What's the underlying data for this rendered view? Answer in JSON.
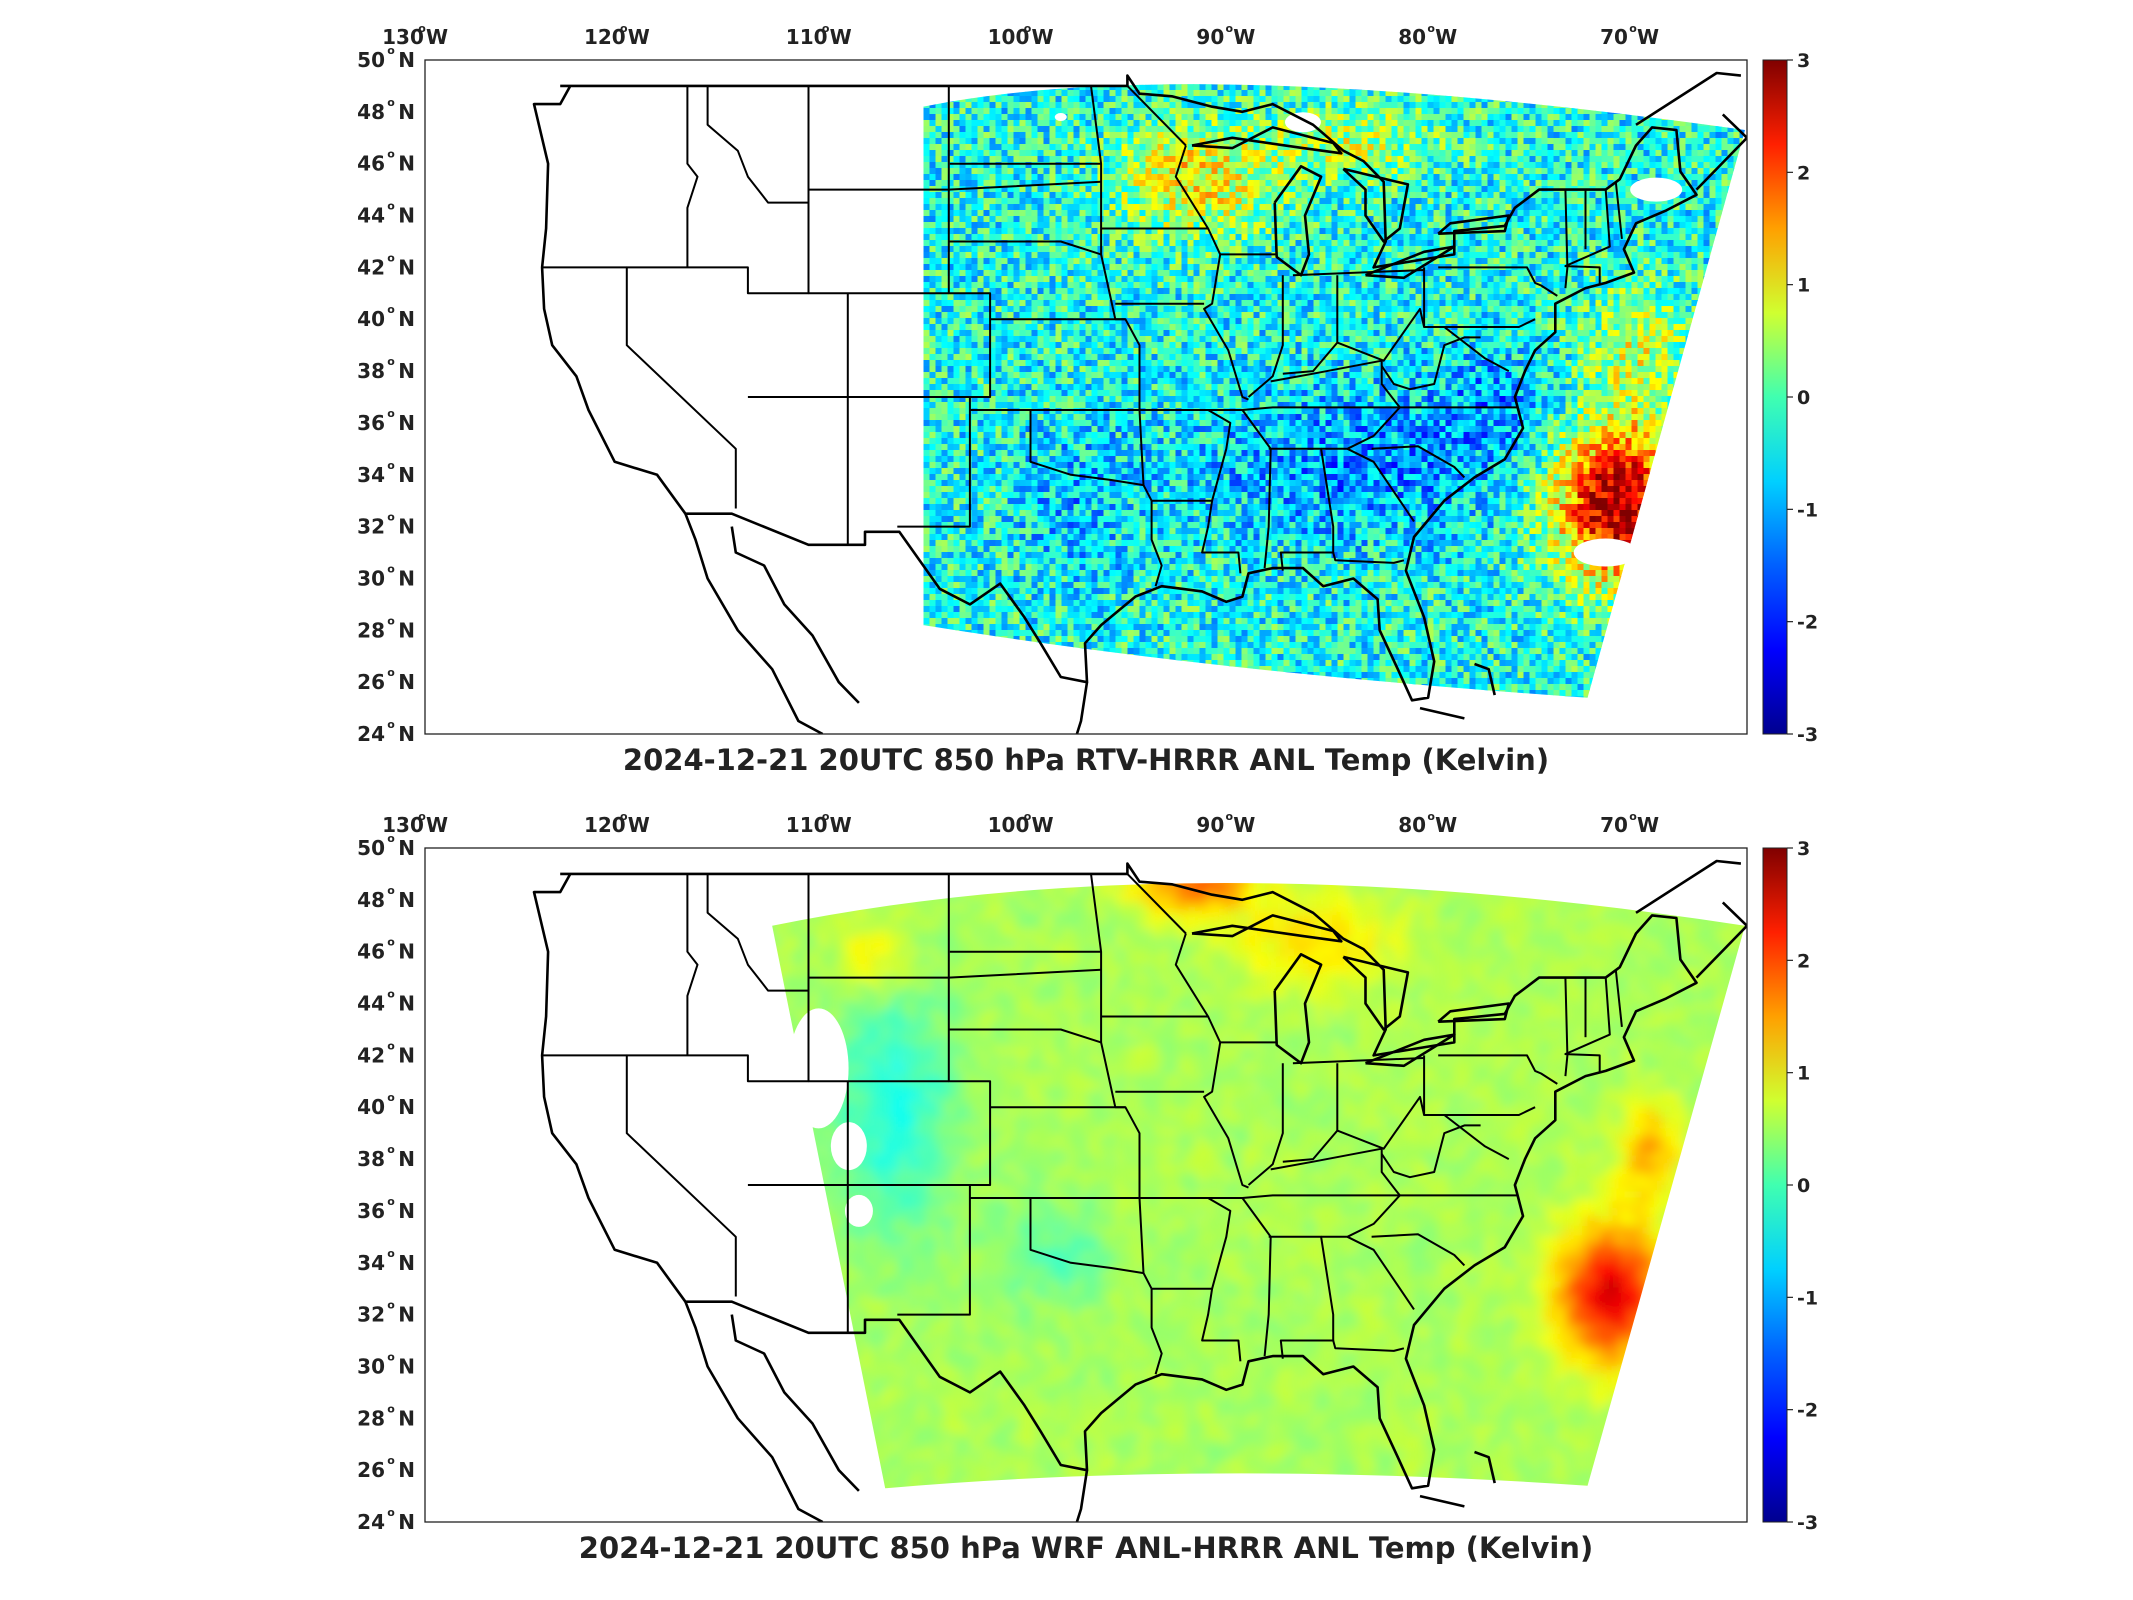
{
  "figure": {
    "panels": [
      {
        "title": "2024-12-21 20UTC 850 hPa RTV-HRRR ANL Temp (Kelvin)",
        "field_character": "noisy, mostly negative over land, strong positive offshore southeast",
        "lon_ticks": [
          "130",
          "120",
          "110",
          "100",
          "90",
          "80",
          "70"
        ],
        "lat_ticks": [
          "50",
          "48",
          "46",
          "44",
          "42",
          "40",
          "38",
          "36",
          "34",
          "32",
          "30",
          "28",
          "26",
          "24"
        ],
        "lon_hemisphere": "W",
        "lat_hemisphere": "N",
        "degree_symbol": "o",
        "colorbar": {
          "colormap": "jet",
          "range": [
            -3,
            3
          ],
          "ticks": [
            "3",
            "2",
            "1",
            "0",
            "-1",
            "-2",
            "-3"
          ]
        }
      },
      {
        "title": "2024-12-21 20UTC 850 hPa WRF ANL-HRRR ANL Temp (Kelvin)",
        "field_character": "smooth, mostly near zero to slightly positive, warm offshore southeast",
        "lon_ticks": [
          "130",
          "120",
          "110",
          "100",
          "90",
          "80",
          "70"
        ],
        "lat_ticks": [
          "50",
          "48",
          "46",
          "44",
          "42",
          "40",
          "38",
          "36",
          "34",
          "32",
          "30",
          "28",
          "26",
          "24"
        ],
        "lon_hemisphere": "W",
        "lat_hemisphere": "N",
        "degree_symbol": "o",
        "colorbar": {
          "colormap": "jet",
          "range": [
            -3,
            3
          ],
          "ticks": [
            "3",
            "2",
            "1",
            "0",
            "-1",
            "-2",
            "-3"
          ]
        }
      }
    ],
    "colors": {
      "jet": [
        "#00008f",
        "#0000ff",
        "#0080ff",
        "#00ffff",
        "#80ff80",
        "#ffff00",
        "#ff8000",
        "#ff0000",
        "#800000"
      ],
      "map_outline": "#000000",
      "frame": "#222222"
    }
  }
}
